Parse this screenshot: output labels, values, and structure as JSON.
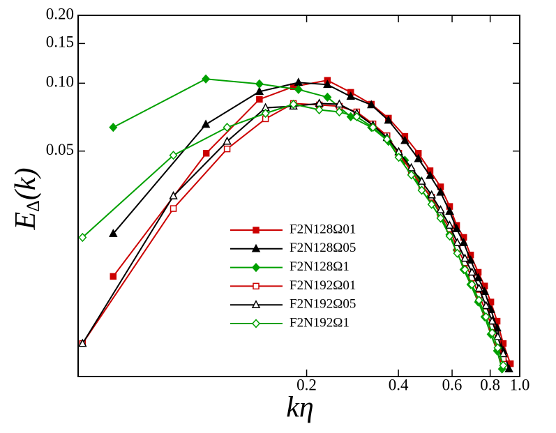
{
  "chart_data": {
    "type": "line",
    "x_label": "kη",
    "y_label": {
      "main": "E",
      "sub": "Δ",
      "rest": "(k)"
    },
    "xscale": "log",
    "yscale": "log",
    "xlim": [
      0.0356,
      1.0
    ],
    "ylim": [
      0.005,
      0.2
    ],
    "xticks": [
      0.2,
      0.4,
      0.6,
      0.8,
      {
        "value": 1.0,
        "label": "1.0"
      }
    ],
    "yticks": [
      {
        "value": 0.2,
        "label": "0.20"
      },
      0.15,
      {
        "value": 0.1,
        "label": "0.10"
      },
      0.05
    ],
    "legend": "center",
    "series": [
      {
        "name": "F2N128Ω01",
        "color": "#cc0000",
        "marker": "square",
        "filled": true,
        "x": [
          0.0464,
          0.0937,
          0.14,
          0.181,
          0.234,
          0.279,
          0.326,
          0.371,
          0.42,
          0.465,
          0.508,
          0.55,
          0.589,
          0.621,
          0.655,
          0.69,
          0.731,
          0.767,
          0.804,
          0.843,
          0.883,
          0.932
        ],
        "values": [
          0.0139,
          0.0489,
          0.0848,
          0.0965,
          0.103,
          0.0911,
          0.0807,
          0.07,
          0.0581,
          0.0489,
          0.0409,
          0.0347,
          0.0284,
          0.0234,
          0.0207,
          0.0173,
          0.0145,
          0.0126,
          0.0107,
          0.0088,
          0.007,
          0.0057
        ]
      },
      {
        "name": "F2N128Ω05",
        "color": "#000000",
        "marker": "triangle",
        "filled": true,
        "x": [
          0.0464,
          0.0934,
          0.14,
          0.188,
          0.234,
          0.279,
          0.326,
          0.371,
          0.42,
          0.465,
          0.508,
          0.55,
          0.589,
          0.621,
          0.655,
          0.69,
          0.731,
          0.767,
          0.804,
          0.843,
          0.883,
          0.922
        ],
        "values": [
          0.0215,
          0.0656,
          0.0918,
          0.1007,
          0.0986,
          0.0873,
          0.0801,
          0.0684,
          0.0556,
          0.0462,
          0.0389,
          0.0328,
          0.027,
          0.0226,
          0.0196,
          0.0164,
          0.0137,
          0.0119,
          0.0099,
          0.0082,
          0.0065,
          0.0054
        ]
      },
      {
        "name": "F2N128Ω1",
        "color": "#00a000",
        "marker": "diamond",
        "filled": true,
        "x": [
          0.0464,
          0.0934,
          0.14,
          0.188,
          0.234,
          0.279,
          0.326,
          0.371,
          0.42,
          0.465,
          0.508,
          0.55,
          0.589,
          0.621,
          0.655,
          0.69,
          0.731,
          0.767,
          0.804,
          0.843,
          0.875
        ],
        "values": [
          0.0637,
          0.1044,
          0.0993,
          0.0938,
          0.0867,
          0.071,
          0.0637,
          0.0552,
          0.0455,
          0.0373,
          0.0314,
          0.0261,
          0.0213,
          0.0182,
          0.0149,
          0.0128,
          0.0107,
          0.0092,
          0.0077,
          0.0065,
          0.0054
        ]
      },
      {
        "name": "F2N192Ω01",
        "color": "#cc0000",
        "marker": "square",
        "filled": false,
        "x": [
          0.0368,
          0.0731,
          0.1097,
          0.1466,
          0.181,
          0.22,
          0.256,
          0.292,
          0.33,
          0.367,
          0.401,
          0.441,
          0.477,
          0.514,
          0.55,
          0.589,
          0.624,
          0.661,
          0.697,
          0.735,
          0.775,
          0.812,
          0.847,
          0.883
        ],
        "values": [
          0.007,
          0.0278,
          0.0511,
          0.0695,
          0.0813,
          0.0801,
          0.079,
          0.0746,
          0.066,
          0.0585,
          0.0489,
          0.0406,
          0.0352,
          0.0312,
          0.0264,
          0.0226,
          0.0185,
          0.016,
          0.0137,
          0.0115,
          0.0097,
          0.0083,
          0.0071,
          0.006
        ]
      },
      {
        "name": "F2N192Ω05",
        "color": "#000000",
        "marker": "triangle",
        "filled": false,
        "x": [
          0.0368,
          0.0731,
          0.1097,
          0.1466,
          0.181,
          0.22,
          0.256,
          0.292,
          0.33,
          0.367,
          0.401,
          0.441,
          0.477,
          0.514,
          0.55,
          0.589,
          0.624,
          0.661,
          0.697,
          0.735,
          0.775,
          0.812,
          0.847,
          0.883
        ],
        "values": [
          0.007,
          0.0316,
          0.0552,
          0.0778,
          0.079,
          0.0813,
          0.0807,
          0.0735,
          0.0651,
          0.0573,
          0.0496,
          0.0421,
          0.0367,
          0.0319,
          0.0274,
          0.0234,
          0.0196,
          0.0167,
          0.0145,
          0.0123,
          0.0103,
          0.0088,
          0.0075,
          0.0063
        ]
      },
      {
        "name": "F2N192Ω1",
        "color": "#00a000",
        "marker": "diamond",
        "filled": false,
        "x": [
          0.0368,
          0.0731,
          0.1097,
          0.1466,
          0.181,
          0.22,
          0.256,
          0.292,
          0.33,
          0.367,
          0.401,
          0.441,
          0.477,
          0.514,
          0.55,
          0.589,
          0.624,
          0.661,
          0.697,
          0.735,
          0.775,
          0.812,
          0.847,
          0.883
        ],
        "values": [
          0.0207,
          0.0479,
          0.0637,
          0.0735,
          0.0807,
          0.0762,
          0.0746,
          0.071,
          0.0637,
          0.0564,
          0.0469,
          0.0392,
          0.0335,
          0.029,
          0.0252,
          0.021,
          0.0176,
          0.0149,
          0.0128,
          0.0109,
          0.0092,
          0.0078,
          0.0067,
          0.0056
        ]
      }
    ]
  }
}
